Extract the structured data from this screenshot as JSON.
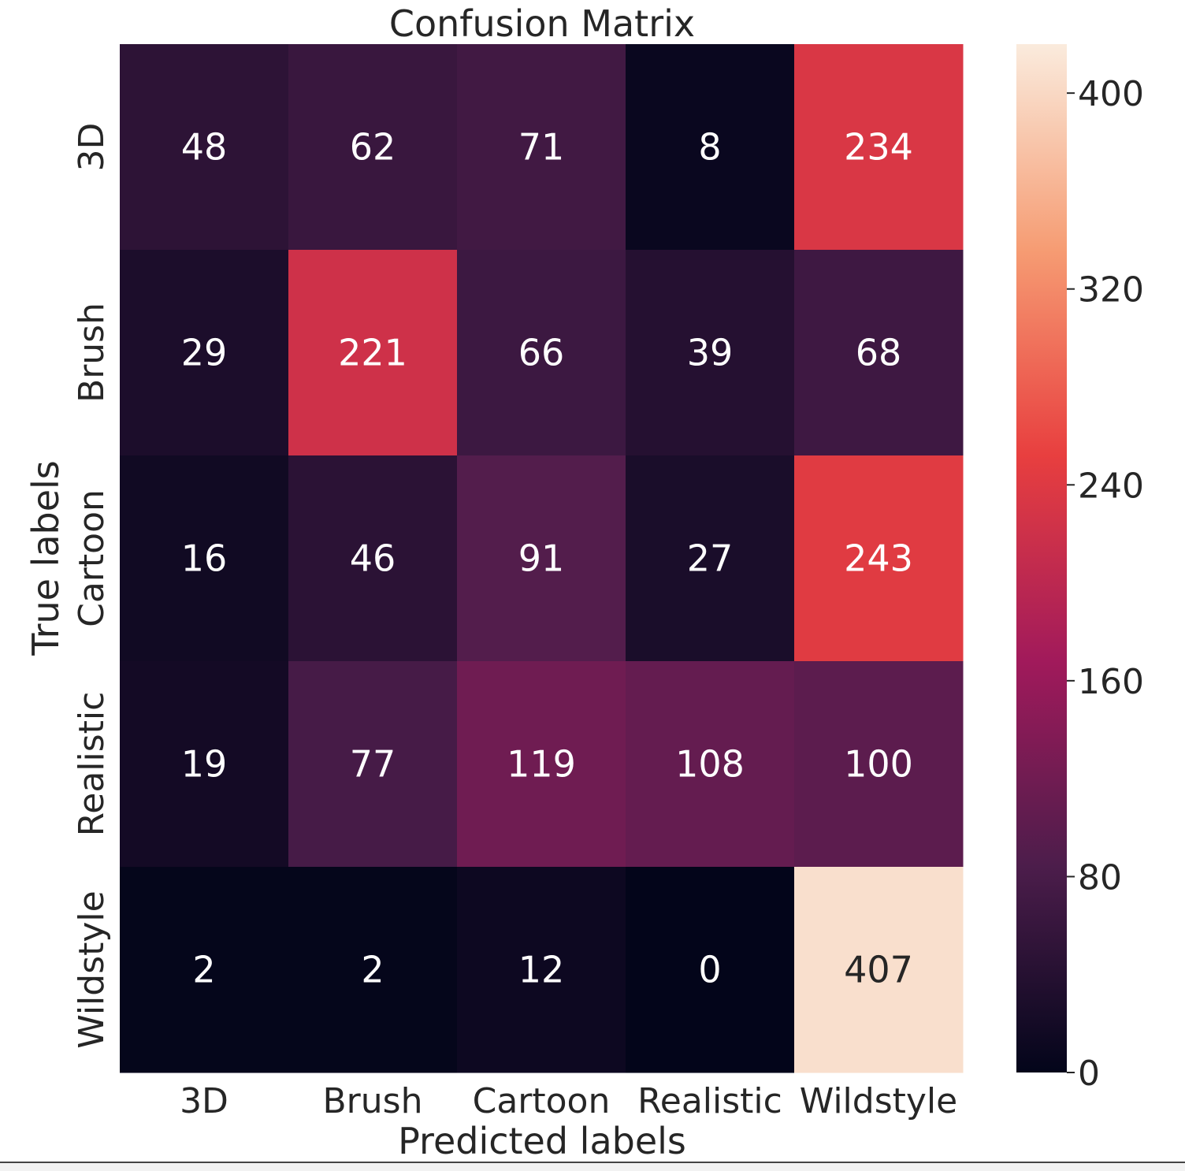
{
  "chart_data": {
    "type": "heatmap",
    "title": "Confusion Matrix",
    "xlabel": "Predicted labels",
    "ylabel": "True labels",
    "x_categories": [
      "3D",
      "Brush",
      "Cartoon",
      "Realistic",
      "Wildstyle"
    ],
    "y_categories": [
      "3D",
      "Brush",
      "Cartoon",
      "Realistic",
      "Wildstyle"
    ],
    "values": [
      [
        48,
        62,
        71,
        8,
        234
      ],
      [
        29,
        221,
        66,
        39,
        68
      ],
      [
        16,
        46,
        91,
        27,
        243
      ],
      [
        19,
        77,
        119,
        108,
        100
      ],
      [
        2,
        2,
        12,
        0,
        407
      ]
    ],
    "colorbar": {
      "min": 0,
      "max": 420,
      "ticks": [
        0,
        80,
        160,
        240,
        320,
        400
      ],
      "colormap": "rocket",
      "colormap_stops": [
        "#03051a",
        "#4c1d4b",
        "#a11a5b",
        "#e83f3f",
        "#f69c73",
        "#faebdd"
      ]
    },
    "annotation_colors": {
      "light_text": "#ffffff",
      "dark_text": "#262626"
    }
  }
}
